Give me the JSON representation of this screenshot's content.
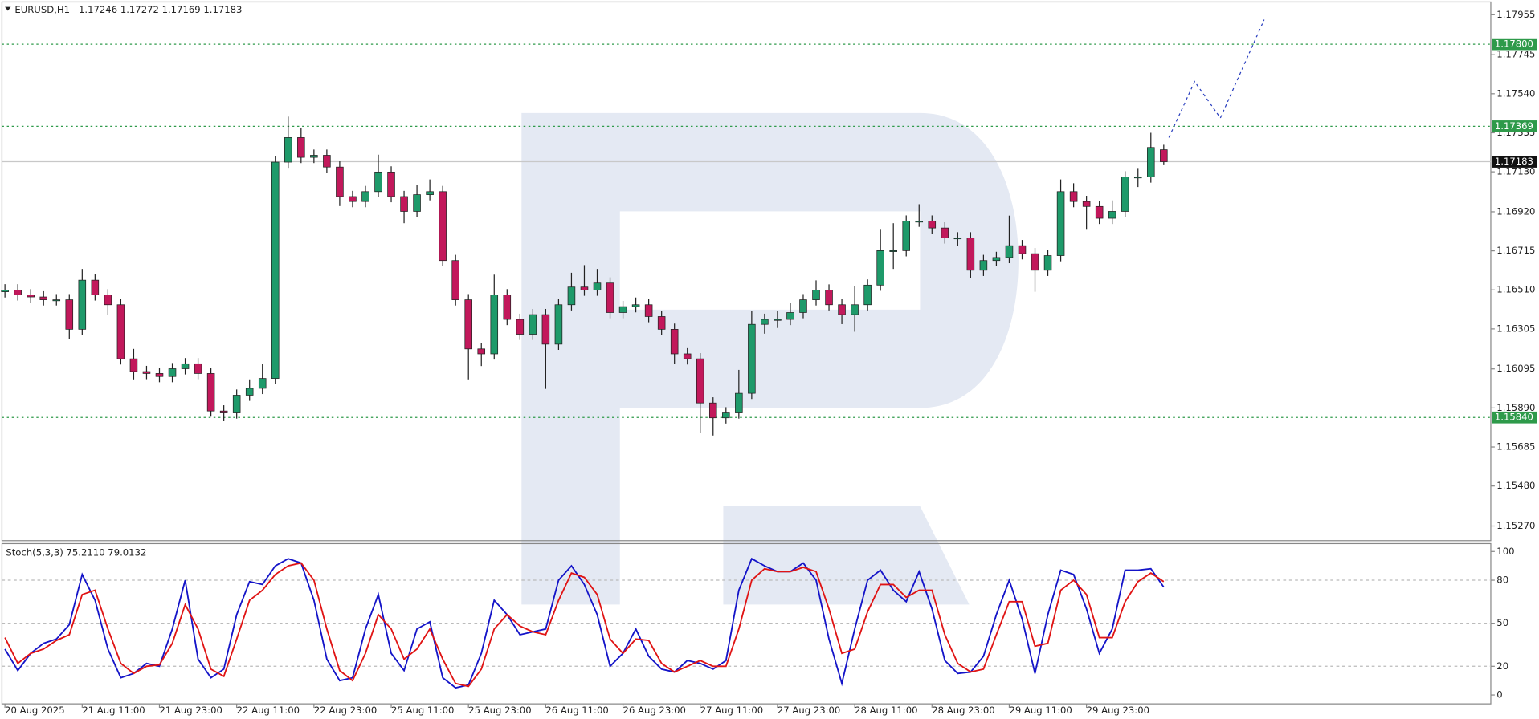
{
  "chart_data": {
    "type": "candlestick",
    "symbol": "EURUSD,H1",
    "up_color": "#1e9a6a",
    "down_color": "#c2185b",
    "candles": [
      [
        1.165,
        1.1654,
        1.1647,
        1.16509
      ],
      [
        1.16509,
        1.1654,
        1.16454,
        1.16484
      ],
      [
        1.16484,
        1.16514,
        1.16443,
        1.16473
      ],
      [
        1.16473,
        1.16503,
        1.16428,
        1.16458
      ],
      [
        1.16458,
        1.16488,
        1.16428,
        1.16458
      ],
      [
        1.16458,
        1.16488,
        1.1625,
        1.16303
      ],
      [
        1.16303,
        1.1662,
        1.16273,
        1.16561
      ],
      [
        1.16561,
        1.16591,
        1.16454,
        1.16484
      ],
      [
        1.16484,
        1.16514,
        1.1638,
        1.16432
      ],
      [
        1.16432,
        1.16462,
        1.16118,
        1.16148
      ],
      [
        1.16148,
        1.162,
        1.1604,
        1.16081
      ],
      [
        1.16081,
        1.16111,
        1.16041,
        1.16071
      ],
      [
        1.16071,
        1.16101,
        1.16025,
        1.16055
      ],
      [
        1.16055,
        1.16126,
        1.16025,
        1.16096
      ],
      [
        1.16096,
        1.16152,
        1.16066,
        1.16122
      ],
      [
        1.16122,
        1.16152,
        1.16041,
        1.16071
      ],
      [
        1.16071,
        1.16101,
        1.15844,
        1.15874
      ],
      [
        1.15874,
        1.15904,
        1.1582,
        1.15864
      ],
      [
        1.15864,
        1.15987,
        1.15834,
        1.15957
      ],
      [
        1.15957,
        1.1604,
        1.15927,
        1.15993
      ],
      [
        1.15993,
        1.1612,
        1.15963,
        1.16045
      ],
      [
        1.16045,
        1.17211,
        1.16015,
        1.17181
      ],
      [
        1.17181,
        1.1742,
        1.17151,
        1.1731
      ],
      [
        1.1731,
        1.1736,
        1.17176,
        1.17206
      ],
      [
        1.17206,
        1.17247,
        1.17176,
        1.17217
      ],
      [
        1.17217,
        1.17247,
        1.17125,
        1.17155
      ],
      [
        1.17155,
        1.17185,
        1.1695,
        1.17
      ],
      [
        1.17,
        1.1703,
        1.16944,
        1.16974
      ],
      [
        1.16974,
        1.17056,
        1.16944,
        1.17026
      ],
      [
        1.17026,
        1.1722,
        1.16996,
        1.17129
      ],
      [
        1.17129,
        1.17159,
        1.1697,
        1.17
      ],
      [
        1.17,
        1.1703,
        1.1686,
        1.16922
      ],
      [
        1.16922,
        1.1706,
        1.16892,
        1.1701
      ],
      [
        1.1701,
        1.1709,
        1.1698,
        1.17026
      ],
      [
        1.17026,
        1.17056,
        1.16634,
        1.16664
      ],
      [
        1.16664,
        1.16694,
        1.16428,
        1.16458
      ],
      [
        1.16458,
        1.16488,
        1.1604,
        1.162
      ],
      [
        1.162,
        1.1623,
        1.1611,
        1.16174
      ],
      [
        1.16174,
        1.1659,
        1.16144,
        1.16484
      ],
      [
        1.16484,
        1.16514,
        1.16325,
        1.16355
      ],
      [
        1.16355,
        1.16385,
        1.16247,
        1.16277
      ],
      [
        1.16277,
        1.1641,
        1.16247,
        1.1638
      ],
      [
        1.1638,
        1.1641,
        1.1599,
        1.16225
      ],
      [
        1.16225,
        1.16462,
        1.16195,
        1.16432
      ],
      [
        1.16432,
        1.166,
        1.16402,
        1.16525
      ],
      [
        1.16525,
        1.1664,
        1.16479,
        1.16509
      ],
      [
        1.16509,
        1.1662,
        1.16479,
        1.16546
      ],
      [
        1.16546,
        1.16576,
        1.16361,
        1.16391
      ],
      [
        1.16391,
        1.16452,
        1.16361,
        1.16422
      ],
      [
        1.16422,
        1.1647,
        1.16392,
        1.16432
      ],
      [
        1.16432,
        1.16462,
        1.1634,
        1.1637
      ],
      [
        1.1637,
        1.164,
        1.16273,
        1.16303
      ],
      [
        1.16303,
        1.16333,
        1.1612,
        1.16174
      ],
      [
        1.16174,
        1.16204,
        1.16118,
        1.16148
      ],
      [
        1.16148,
        1.16178,
        1.1576,
        1.15916
      ],
      [
        1.15916,
        1.15946,
        1.15745,
        1.15838
      ],
      [
        1.15838,
        1.15894,
        1.15808,
        1.15864
      ],
      [
        1.15864,
        1.1609,
        1.15834,
        1.15967
      ],
      [
        1.15967,
        1.164,
        1.15937,
        1.16329
      ],
      [
        1.16329,
        1.16385,
        1.1628,
        1.16355
      ],
      [
        1.16355,
        1.164,
        1.1631,
        1.16355
      ],
      [
        1.16355,
        1.1644,
        1.16325,
        1.16391
      ],
      [
        1.16391,
        1.16488,
        1.16361,
        1.16458
      ],
      [
        1.16458,
        1.1656,
        1.16428,
        1.16509
      ],
      [
        1.16509,
        1.16539,
        1.16402,
        1.16432
      ],
      [
        1.16432,
        1.16462,
        1.1633,
        1.1638
      ],
      [
        1.1638,
        1.1653,
        1.1629,
        1.16432
      ],
      [
        1.16432,
        1.16565,
        1.16402,
        1.16535
      ],
      [
        1.16535,
        1.1683,
        1.16505,
        1.16716
      ],
      [
        1.16716,
        1.1686,
        1.1662,
        1.16716
      ],
      [
        1.16716,
        1.16901,
        1.16686,
        1.16871
      ],
      [
        1.16871,
        1.1696,
        1.16841,
        1.16871
      ],
      [
        1.16871,
        1.16901,
        1.16805,
        1.16835
      ],
      [
        1.16835,
        1.16865,
        1.16753,
        1.16783
      ],
      [
        1.16783,
        1.16813,
        1.1674,
        1.16783
      ],
      [
        1.16783,
        1.16813,
        1.1657,
        1.16613
      ],
      [
        1.16613,
        1.16694,
        1.16583,
        1.16664
      ],
      [
        1.16664,
        1.1671,
        1.16634,
        1.1668
      ],
      [
        1.1668,
        1.169,
        1.1665,
        1.16742
      ],
      [
        1.16742,
        1.16772,
        1.1667,
        1.167
      ],
      [
        1.167,
        1.1673,
        1.165,
        1.16613
      ],
      [
        1.16613,
        1.1672,
        1.16583,
        1.1669
      ],
      [
        1.1669,
        1.1709,
        1.1666,
        1.17026
      ],
      [
        1.17026,
        1.1707,
        1.16944,
        1.16974
      ],
      [
        1.16974,
        1.17004,
        1.1683,
        1.16948
      ],
      [
        1.16948,
        1.16978,
        1.16856,
        1.16886
      ],
      [
        1.16886,
        1.1698,
        1.16856,
        1.16922
      ],
      [
        1.16922,
        1.17133,
        1.16892,
        1.17103
      ],
      [
        1.17103,
        1.1715,
        1.1705,
        1.17103
      ],
      [
        1.17103,
        1.17335,
        1.17073,
        1.17258
      ],
      [
        1.17246,
        1.17272,
        1.17169,
        1.17183
      ]
    ],
    "xlim": [
      -0.23,
      115.4
    ],
    "xticks": [
      {
        "value": 0,
        "label": "20 Aug 2025"
      },
      {
        "value": 6,
        "label": "21 Aug 11:00"
      },
      {
        "value": 12,
        "label": "21 Aug 23:00"
      },
      {
        "value": 18,
        "label": "22 Aug 11:00"
      },
      {
        "value": 24,
        "label": "22 Aug 23:00"
      },
      {
        "value": 30,
        "label": "25 Aug 11:00"
      },
      {
        "value": 36,
        "label": "25 Aug 23:00"
      },
      {
        "value": 42,
        "label": "26 Aug 11:00"
      },
      {
        "value": 48,
        "label": "26 Aug 23:00"
      },
      {
        "value": 54,
        "label": "27 Aug 11:00"
      },
      {
        "value": 60,
        "label": "27 Aug 23:00"
      },
      {
        "value": 66,
        "label": "28 Aug 11:00"
      },
      {
        "value": 72,
        "label": "28 Aug 23:00"
      },
      {
        "value": 78,
        "label": "29 Aug 11:00"
      },
      {
        "value": 84,
        "label": "29 Aug 23:00"
      }
    ],
    "ylim": [
      1.15193,
      1.18022
    ],
    "yticks": [
      1.17955,
      1.17745,
      {
        "value": 1.1754,
        "label": "1.17540"
      },
      1.17335,
      {
        "value": 1.1713,
        "label": "1.17130"
      },
      {
        "value": 1.1692,
        "label": "1.16920"
      },
      1.16715,
      {
        "value": 1.1651,
        "label": "1.16510"
      },
      1.16305,
      1.16095,
      {
        "value": 1.1589,
        "label": "1.15890"
      },
      1.15685,
      {
        "value": 1.1548,
        "label": "1.15480"
      },
      {
        "value": 1.1527,
        "label": "1.15270"
      }
    ],
    "level_color": "#2e9a4a",
    "levels": [
      {
        "value": 1.178,
        "label": "1.17800"
      },
      {
        "value": 1.17369,
        "label": "1.17369"
      },
      {
        "value": 1.1584,
        "label": "1.15840"
      }
    ],
    "forecast": {
      "color": "#2a3fbf",
      "x": [
        90.4,
        92.4,
        94.4,
        97.8
      ],
      "values": [
        1.1731,
        1.17604,
        1.17413,
        1.17929
      ]
    },
    "stoch": {
      "title": "Stoch(5,3,3)",
      "ylim": [
        -6.2,
        105.5
      ],
      "yticks": [
        0,
        20,
        50,
        80,
        100
      ],
      "grid_levels": [
        20,
        50,
        80
      ],
      "series": [
        {
          "color": "#1414c8",
          "last_label": "75.2110",
          "values": [
            32,
            17,
            29,
            36,
            39,
            49,
            84,
            66,
            32,
            12,
            15,
            22,
            20,
            46,
            80,
            25,
            12,
            18,
            56,
            79,
            77,
            90,
            95,
            92,
            66,
            25,
            10,
            12,
            46,
            70,
            29,
            17,
            46,
            51,
            12,
            5,
            7,
            29,
            66,
            56,
            42,
            44,
            46,
            80,
            90,
            77,
            56,
            20,
            29,
            46,
            27,
            18,
            16,
            24,
            22,
            18,
            24,
            73,
            95,
            90,
            86,
            86,
            92,
            80,
            39,
            8,
            46,
            80,
            87,
            73,
            65,
            86,
            60,
            24,
            15,
            16,
            27,
            56,
            80,
            53,
            15,
            56,
            87,
            84,
            60,
            29,
            46,
            87,
            87,
            88,
            75.211
          ]
        },
        {
          "color": "#e01414",
          "last_label": "79.0132",
          "values": [
            40,
            22,
            29,
            32,
            38,
            42,
            70,
            73,
            46,
            22,
            15,
            20,
            21,
            36,
            63,
            46,
            18,
            13,
            39,
            66,
            73,
            84,
            90,
            92,
            80,
            46,
            17,
            10,
            29,
            56,
            46,
            25,
            32,
            46,
            25,
            8,
            6,
            18,
            46,
            56,
            48,
            44,
            42,
            66,
            85,
            82,
            70,
            39,
            29,
            39,
            38,
            22,
            16,
            20,
            24,
            20,
            20,
            46,
            80,
            88,
            86,
            86,
            89,
            86,
            60,
            29,
            32,
            58,
            77,
            77,
            68,
            73,
            73,
            42,
            22,
            16,
            18,
            42,
            65,
            65,
            34,
            36,
            73,
            80,
            70,
            40,
            40,
            65,
            79,
            85,
            79.0132
          ]
        }
      ]
    }
  }
}
